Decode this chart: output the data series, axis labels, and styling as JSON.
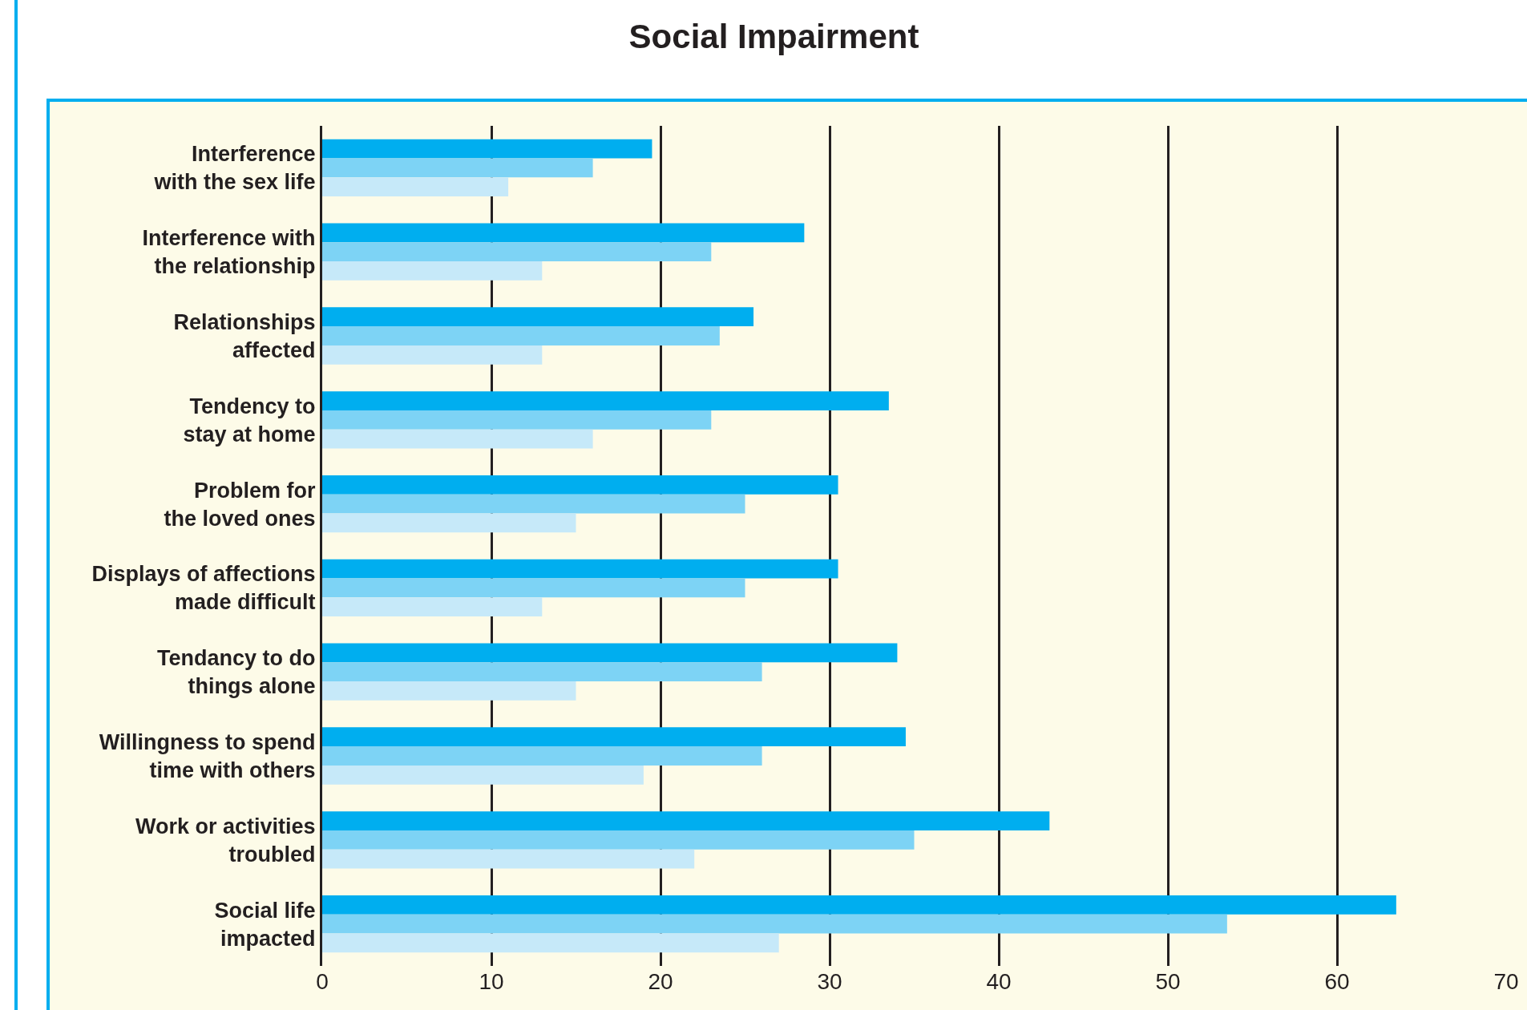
{
  "chart_data": {
    "type": "bar",
    "orientation": "horizontal",
    "title": "Social Impairment",
    "categories": [
      "Interference with the sex life",
      "Interference with the relationship",
      "Relationships affected",
      "Tendency to stay at home",
      "Problem for the loved ones",
      "Displays of affections made difficult",
      "Tendancy to do things alone",
      "Willingness to spend time with others",
      "Work or activities troubled",
      "Social life impacted"
    ],
    "series": [
      {
        "color": "#00aeef",
        "values": [
          19.5,
          28.5,
          25.5,
          33.5,
          30.5,
          30.5,
          34,
          34.5,
          43,
          63.5
        ]
      },
      {
        "color": "#7dd3f5",
        "values": [
          16,
          23,
          23.5,
          23,
          25,
          25,
          26,
          26,
          35,
          53.5
        ]
      },
      {
        "color": "#c6e9f9",
        "values": [
          11,
          13,
          13,
          16,
          15,
          13,
          15,
          19,
          22,
          27
        ]
      }
    ],
    "xlim": [
      0,
      70
    ],
    "xticks": [
      0,
      10,
      20,
      30,
      40,
      50,
      60,
      70
    ],
    "grid": "x"
  }
}
